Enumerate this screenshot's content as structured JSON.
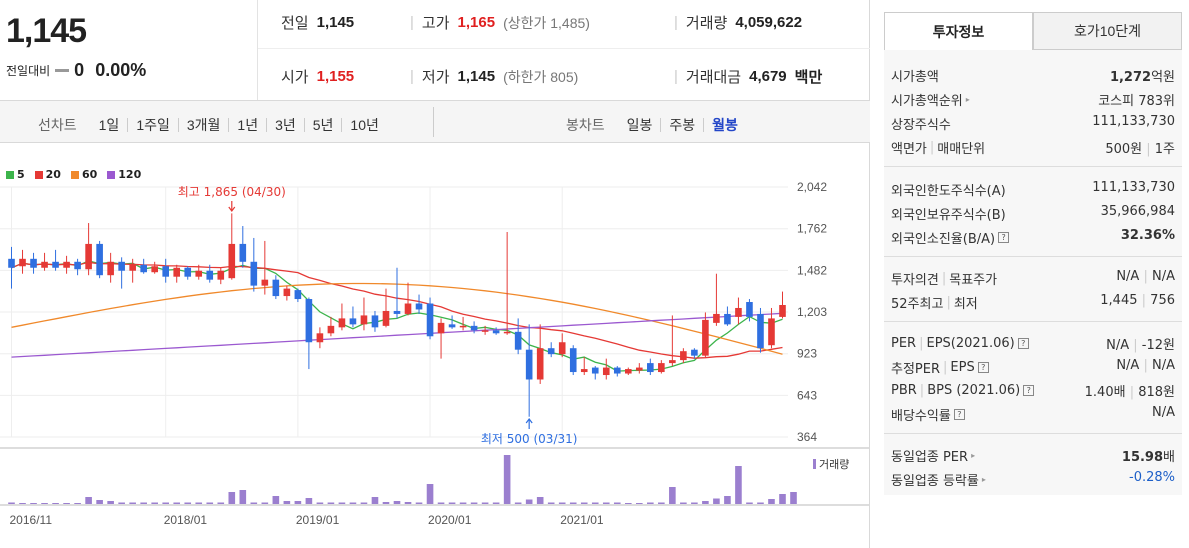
{
  "price": {
    "current": "1,145",
    "change_label": "전일대비",
    "change_value": "0",
    "change_pct": "0.00%"
  },
  "stats": {
    "prev_label": "전일",
    "prev": "1,145",
    "high_label": "고가",
    "high": "1,165",
    "upper_limit": "(상한가 1,485)",
    "volume_label": "거래량",
    "volume": "4,059,622",
    "open_label": "시가",
    "open": "1,155",
    "low_label": "저가",
    "low": "1,145",
    "lower_limit": "(하한가 805)",
    "amount_label": "거래대금",
    "amount": "4,679",
    "amount_unit": "백만"
  },
  "period_bar": {
    "line_label": "선차트",
    "line_items": [
      "1일",
      "1주일",
      "3개월",
      "1년",
      "3년",
      "5년",
      "10년"
    ],
    "candle_label": "봉차트",
    "candle_items": [
      "일봉",
      "주봉",
      "월봉"
    ],
    "active_candle": "월봉"
  },
  "chart_data": {
    "type": "candlestick",
    "legend": [
      {
        "name": "5",
        "color": "#3cb44b"
      },
      {
        "name": "20",
        "color": "#e53935"
      },
      {
        "name": "60",
        "color": "#f0892b"
      },
      {
        "name": "120",
        "color": "#9b59d0"
      }
    ],
    "y_ticks": [
      "2,042",
      "1,762",
      "1,482",
      "1,203",
      "923",
      "643",
      "364"
    ],
    "y_range": [
      364,
      2042
    ],
    "x_ticks": [
      "2016/11",
      "2018/01",
      "2019/01",
      "2020/01",
      "2021/01"
    ],
    "high_annotation": "최고 1,865 (04/30)",
    "low_annotation": "최저 500 (03/31)",
    "volume_label": "거래량",
    "up_color": "#e53935",
    "down_color": "#2f6fe0",
    "candles": [
      {
        "o": 1560,
        "c": 1500,
        "h": 1640,
        "l": 1360
      },
      {
        "o": 1510,
        "c": 1560,
        "h": 1620,
        "l": 1460
      },
      {
        "o": 1560,
        "c": 1500,
        "h": 1600,
        "l": 1460
      },
      {
        "o": 1500,
        "c": 1540,
        "h": 1600,
        "l": 1480
      },
      {
        "o": 1540,
        "c": 1500,
        "h": 1620,
        "l": 1480
      },
      {
        "o": 1500,
        "c": 1540,
        "h": 1580,
        "l": 1460
      },
      {
        "o": 1540,
        "c": 1490,
        "h": 1560,
        "l": 1450
      },
      {
        "o": 1490,
        "c": 1660,
        "h": 1800,
        "l": 1450
      },
      {
        "o": 1660,
        "c": 1450,
        "h": 1680,
        "l": 1430
      },
      {
        "o": 1450,
        "c": 1540,
        "h": 1600,
        "l": 1400
      },
      {
        "o": 1540,
        "c": 1480,
        "h": 1570,
        "l": 1360
      },
      {
        "o": 1480,
        "c": 1520,
        "h": 1560,
        "l": 1400
      },
      {
        "o": 1520,
        "c": 1470,
        "h": 1560,
        "l": 1460
      },
      {
        "o": 1470,
        "c": 1510,
        "h": 1540,
        "l": 1460
      },
      {
        "o": 1510,
        "c": 1440,
        "h": 1560,
        "l": 1400
      },
      {
        "o": 1440,
        "c": 1500,
        "h": 1520,
        "l": 1400
      },
      {
        "o": 1500,
        "c": 1440,
        "h": 1510,
        "l": 1420
      },
      {
        "o": 1440,
        "c": 1480,
        "h": 1520,
        "l": 1420
      },
      {
        "o": 1480,
        "c": 1420,
        "h": 1520,
        "l": 1400
      },
      {
        "o": 1420,
        "c": 1480,
        "h": 1500,
        "l": 1390
      },
      {
        "o": 1430,
        "c": 1660,
        "h": 1865,
        "l": 1420
      },
      {
        "o": 1660,
        "c": 1540,
        "h": 1780,
        "l": 1500
      },
      {
        "o": 1540,
        "c": 1380,
        "h": 1700,
        "l": 1340
      },
      {
        "o": 1380,
        "c": 1420,
        "h": 1680,
        "l": 1320
      },
      {
        "o": 1420,
        "c": 1310,
        "h": 1450,
        "l": 1290
      },
      {
        "o": 1310,
        "c": 1360,
        "h": 1380,
        "l": 1280
      },
      {
        "o": 1350,
        "c": 1290,
        "h": 1360,
        "l": 1270
      },
      {
        "o": 1290,
        "c": 1000,
        "h": 1300,
        "l": 820
      },
      {
        "o": 1000,
        "c": 1060,
        "h": 1100,
        "l": 960
      },
      {
        "o": 1060,
        "c": 1110,
        "h": 1170,
        "l": 1040
      },
      {
        "o": 1100,
        "c": 1160,
        "h": 1260,
        "l": 1080
      },
      {
        "o": 1160,
        "c": 1120,
        "h": 1240,
        "l": 1100
      },
      {
        "o": 1120,
        "c": 1180,
        "h": 1300,
        "l": 1080
      },
      {
        "o": 1180,
        "c": 1100,
        "h": 1210,
        "l": 1070
      },
      {
        "o": 1110,
        "c": 1210,
        "h": 1360,
        "l": 1100
      },
      {
        "o": 1210,
        "c": 1190,
        "h": 1500,
        "l": 1160
      },
      {
        "o": 1190,
        "c": 1260,
        "h": 1400,
        "l": 1180
      },
      {
        "o": 1260,
        "c": 1220,
        "h": 1320,
        "l": 1190
      },
      {
        "o": 1260,
        "c": 1040,
        "h": 1300,
        "l": 1020
      },
      {
        "o": 1060,
        "c": 1130,
        "h": 1160,
        "l": 890
      },
      {
        "o": 1120,
        "c": 1100,
        "h": 1180,
        "l": 1090
      },
      {
        "o": 1100,
        "c": 1110,
        "h": 1170,
        "l": 1080
      },
      {
        "o": 1110,
        "c": 1080,
        "h": 1140,
        "l": 1060
      },
      {
        "o": 1080,
        "c": 1080,
        "h": 1110,
        "l": 1050
      },
      {
        "o": 1080,
        "c": 1060,
        "h": 1100,
        "l": 1050
      },
      {
        "o": 1060,
        "c": 1070,
        "h": 1740,
        "l": 1050
      },
      {
        "o": 1070,
        "c": 950,
        "h": 1160,
        "l": 920
      },
      {
        "o": 950,
        "c": 750,
        "h": 1120,
        "l": 500
      },
      {
        "o": 750,
        "c": 960,
        "h": 1120,
        "l": 720
      },
      {
        "o": 960,
        "c": 920,
        "h": 1000,
        "l": 900
      },
      {
        "o": 920,
        "c": 1000,
        "h": 1060,
        "l": 900
      },
      {
        "o": 960,
        "c": 800,
        "h": 980,
        "l": 780
      },
      {
        "o": 800,
        "c": 820,
        "h": 900,
        "l": 780
      },
      {
        "o": 830,
        "c": 790,
        "h": 840,
        "l": 750
      },
      {
        "o": 780,
        "c": 830,
        "h": 890,
        "l": 750
      },
      {
        "o": 830,
        "c": 790,
        "h": 840,
        "l": 770
      },
      {
        "o": 790,
        "c": 820,
        "h": 830,
        "l": 780
      },
      {
        "o": 810,
        "c": 830,
        "h": 860,
        "l": 790
      },
      {
        "o": 860,
        "c": 800,
        "h": 890,
        "l": 780
      },
      {
        "o": 800,
        "c": 860,
        "h": 880,
        "l": 790
      },
      {
        "o": 860,
        "c": 880,
        "h": 1180,
        "l": 840
      },
      {
        "o": 880,
        "c": 940,
        "h": 960,
        "l": 860
      },
      {
        "o": 950,
        "c": 910,
        "h": 960,
        "l": 890
      },
      {
        "o": 910,
        "c": 1150,
        "h": 1200,
        "l": 900
      },
      {
        "o": 1130,
        "c": 1190,
        "h": 1460,
        "l": 1110
      },
      {
        "o": 1190,
        "c": 1120,
        "h": 1240,
        "l": 1110
      },
      {
        "o": 1170,
        "c": 1230,
        "h": 1300,
        "l": 1120
      },
      {
        "o": 1270,
        "c": 1170,
        "h": 1290,
        "l": 1140
      },
      {
        "o": 1190,
        "c": 960,
        "h": 1230,
        "l": 930
      },
      {
        "o": 980,
        "c": 1160,
        "h": 1230,
        "l": 960
      },
      {
        "o": 1170,
        "c": 1250,
        "h": 1340,
        "l": 1160
      }
    ],
    "volume": [
      3,
      2,
      2,
      2,
      2,
      2,
      2,
      14,
      8,
      6,
      3,
      3,
      3,
      3,
      3,
      3,
      3,
      3,
      3,
      3,
      24,
      28,
      3,
      3,
      16,
      6,
      6,
      12,
      3,
      3,
      3,
      3,
      3,
      14,
      4,
      6,
      4,
      3,
      40,
      3,
      3,
      3,
      3,
      3,
      3,
      98,
      3,
      9,
      14,
      3,
      3,
      3,
      3,
      3,
      3,
      3,
      2,
      2,
      3,
      3,
      34,
      3,
      3,
      6,
      11,
      16,
      76,
      3,
      3,
      10,
      20,
      24
    ]
  },
  "tabs": {
    "invest": "투자정보",
    "hoga": "호가10단계"
  },
  "info": {
    "mktcap_label": "시가총액",
    "mktcap": "1,272",
    "mktcap_unit": "억원",
    "rank_label": "시가총액순위",
    "rank": "코스피 783위",
    "shares_label": "상장주식수",
    "shares": "111,133,730",
    "par_label": "액면가",
    "trade_unit_label": "매매단위",
    "par": "500원",
    "trade_unit": "1주",
    "foreign_limit_label": "외국인한도주식수(A)",
    "foreign_limit": "111,133,730",
    "foreign_hold_label": "외국인보유주식수(B)",
    "foreign_hold": "35,966,984",
    "foreign_ratio_label": "외국인소진율(B/A)",
    "foreign_ratio": "32.36%",
    "opinion_label": "투자의견",
    "target_label": "목표주가",
    "opinion": "N/A",
    "target": "N/A",
    "w52_label": "52주최고",
    "w52_low_label": "최저",
    "w52_high": "1,445",
    "w52_low": "756",
    "per_label": "PER",
    "eps_label": "EPS(2021.06)",
    "per": "N/A",
    "eps": "-12원",
    "est_per_label": "추정PER",
    "est_eps_label": "EPS",
    "est_per": "N/A",
    "est_eps": "N/A",
    "pbr_label": "PBR",
    "bps_label": "BPS (2021.06)",
    "pbr": "1.40배",
    "bps": "818원",
    "div_label": "배당수익률",
    "div": "N/A",
    "ind_per_label": "동일업종 PER",
    "ind_per": "15.98",
    "ind_per_unit": "배",
    "ind_chg_label": "동일업종 등락률",
    "ind_chg": "-0.28%"
  }
}
